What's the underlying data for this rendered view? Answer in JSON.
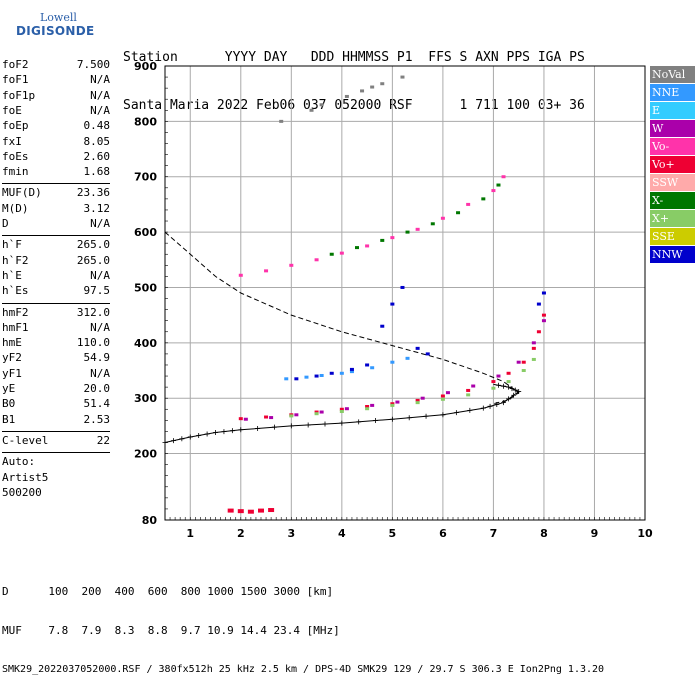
{
  "logo": {
    "line1": "Lowell",
    "line2": "DIGISONDE"
  },
  "header": {
    "line1": "Station      YYYY DAY   DDD HHMMSS P1  FFS S AXN PPS IGA PS",
    "line2": "Santa Maria 2022 Feb06 037 052000 RSF      1 711 100 03+ 36"
  },
  "params": [
    {
      "k": "foF2",
      "v": "7.500"
    },
    {
      "k": "foF1",
      "v": "N/A"
    },
    {
      "k": "foF1p",
      "v": "N/A"
    },
    {
      "k": "foE",
      "v": "N/A"
    },
    {
      "k": "foEp",
      "v": "0.48"
    },
    {
      "k": "fxI",
      "v": "8.05"
    },
    {
      "k": "foEs",
      "v": "2.60"
    },
    {
      "k": "fmin",
      "v": "1.68"
    },
    {
      "sep": true
    },
    {
      "k": "MUF(D)",
      "v": "23.36"
    },
    {
      "k": "M(D)",
      "v": "3.12"
    },
    {
      "k": "D",
      "v": "N/A"
    },
    {
      "sep": true
    },
    {
      "k": "h`F",
      "v": "265.0"
    },
    {
      "k": "h`F2",
      "v": "265.0"
    },
    {
      "k": "h`E",
      "v": "N/A"
    },
    {
      "k": "h`Es",
      "v": "97.5"
    },
    {
      "sep": true
    },
    {
      "k": "hmF2",
      "v": "312.0"
    },
    {
      "k": "hmF1",
      "v": "N/A"
    },
    {
      "k": "hmE",
      "v": "110.0"
    },
    {
      "k": "yF2",
      "v": "54.9"
    },
    {
      "k": "yF1",
      "v": "N/A"
    },
    {
      "k": "yE",
      "v": "20.0"
    },
    {
      "k": "B0",
      "v": "51.4"
    },
    {
      "k": "B1",
      "v": "2.53"
    },
    {
      "sep": true
    },
    {
      "k": "C-level",
      "v": "22"
    },
    {
      "sep": true
    },
    {
      "k": "Auto:",
      "v": ""
    },
    {
      "k": "Artist5",
      "v": ""
    },
    {
      "k": "500200",
      "v": ""
    }
  ],
  "legend": [
    {
      "label": "NoVal",
      "color": "#808080"
    },
    {
      "label": "NNE",
      "color": "#3399ff"
    },
    {
      "label": "E",
      "color": "#33ccff"
    },
    {
      "label": "W",
      "color": "#aa00aa"
    },
    {
      "label": "Vo-",
      "color": "#ff33aa"
    },
    {
      "label": "Vo+",
      "color": "#ee0033"
    },
    {
      "label": "SSW",
      "color": "#ffaaaa"
    },
    {
      "label": "X-",
      "color": "#007700"
    },
    {
      "label": "X+",
      "color": "#88cc66"
    },
    {
      "label": "SSE",
      "color": "#cccc00"
    },
    {
      "label": "NNW",
      "color": "#0000cc"
    }
  ],
  "footer": {
    "line1": "D      100  200  400  600  800 1000 1500 3000 [km]",
    "line2": "MUF    7.8  7.9  8.3  8.8  9.7 10.9 14.4 23.4 [MHz]",
    "line3": "SMK29_2022037052000.RSF / 380fx512h 25 kHz 2.5 km / DPS-4D SMK29 129 / 29.7 S 306.3 E Ion2Png 1.3.20"
  },
  "chart_data": {
    "type": "scatter",
    "title": "",
    "xlabel": "",
    "ylabel": "",
    "xlim": [
      0.5,
      10
    ],
    "ylim": [
      80,
      900
    ],
    "grid": true,
    "legend_position": "right",
    "xticks": [
      1,
      2,
      3,
      4,
      5,
      6,
      7,
      8,
      9,
      10
    ],
    "yticks": [
      80,
      200,
      300,
      400,
      500,
      600,
      700,
      800,
      900
    ],
    "series": [
      {
        "name": "Vo+",
        "color": "#ee0033",
        "x": [
          2.0,
          2.5,
          3.0,
          3.5,
          4.0,
          4.5,
          5.0,
          5.5,
          6.0,
          6.5,
          7.0,
          7.3,
          7.6,
          7.8,
          7.9,
          8.0
        ],
        "y": [
          263,
          266,
          270,
          275,
          280,
          285,
          290,
          296,
          304,
          314,
          330,
          345,
          365,
          390,
          420,
          450
        ]
      },
      {
        "name": "W",
        "color": "#aa00aa",
        "x": [
          2.1,
          2.6,
          3.1,
          3.6,
          4.1,
          4.6,
          5.1,
          5.6,
          6.1,
          6.6,
          7.1,
          7.5,
          7.8,
          8.0
        ],
        "y": [
          262,
          265,
          270,
          275,
          281,
          287,
          293,
          300,
          310,
          322,
          340,
          365,
          400,
          440
        ]
      },
      {
        "name": "X+",
        "color": "#88cc66",
        "x": [
          3.0,
          3.5,
          4.0,
          4.5,
          5.0,
          5.5,
          6.0,
          6.5,
          7.0,
          7.3,
          7.6,
          7.8
        ],
        "y": [
          268,
          272,
          276,
          281,
          287,
          292,
          298,
          306,
          318,
          330,
          350,
          370
        ]
      },
      {
        "name": "NNE",
        "color": "#3399ff",
        "x": [
          2.9,
          3.3,
          3.6,
          4.0,
          4.2,
          4.6,
          5.0,
          5.3
        ],
        "y": [
          335,
          338,
          341,
          345,
          348,
          355,
          365,
          372
        ]
      },
      {
        "name": "NNW",
        "color": "#0000cc",
        "x": [
          3.1,
          3.5,
          3.8,
          4.2,
          4.5,
          4.8,
          5.0,
          5.2,
          5.5,
          5.7,
          7.9,
          8.0
        ],
        "y": [
          335,
          340,
          345,
          352,
          360,
          430,
          470,
          500,
          390,
          380,
          470,
          490
        ]
      },
      {
        "name": "Vo-",
        "color": "#ff33aa",
        "x": [
          2.0,
          2.5,
          3.0,
          3.5,
          4.0,
          4.5,
          5.0,
          5.5,
          6.0,
          6.5,
          7.0,
          7.2
        ],
        "y": [
          522,
          530,
          540,
          550,
          562,
          575,
          590,
          605,
          625,
          650,
          675,
          700
        ]
      },
      {
        "name": "X-",
        "color": "#007700",
        "x": [
          3.8,
          4.3,
          4.8,
          5.3,
          5.8,
          6.3,
          6.8,
          7.1
        ],
        "y": [
          560,
          572,
          585,
          600,
          615,
          635,
          660,
          685
        ]
      },
      {
        "name": "NoVal",
        "color": "#808080",
        "x": [
          2.8,
          3.4,
          3.6,
          4.1,
          4.4,
          4.6,
          4.8,
          5.2
        ],
        "y": [
          800,
          820,
          830,
          845,
          855,
          862,
          868,
          880
        ]
      }
    ],
    "es_trace": {
      "x": [
        1.8,
        2.0,
        2.2,
        2.4,
        2.6
      ],
      "y": [
        97,
        96,
        95,
        97,
        98
      ]
    },
    "profile_dashed": {
      "x": [
        0.5,
        1.0,
        1.5,
        2.0,
        3.0,
        4.0,
        5.0,
        6.0,
        6.8,
        7.2,
        7.5,
        7.3,
        7.0
      ],
      "y": [
        600,
        560,
        520,
        490,
        450,
        420,
        395,
        370,
        345,
        330,
        310,
        297,
        290
      ]
    },
    "profile_solid": {
      "x": [
        0.5,
        1.0,
        1.5,
        2.0,
        3.0,
        4.0,
        5.0,
        6.0,
        6.8,
        7.2,
        7.5,
        7.3,
        7.0
      ],
      "y": [
        220,
        230,
        238,
        243,
        250,
        255,
        262,
        270,
        282,
        292,
        312,
        320,
        325
      ]
    }
  }
}
